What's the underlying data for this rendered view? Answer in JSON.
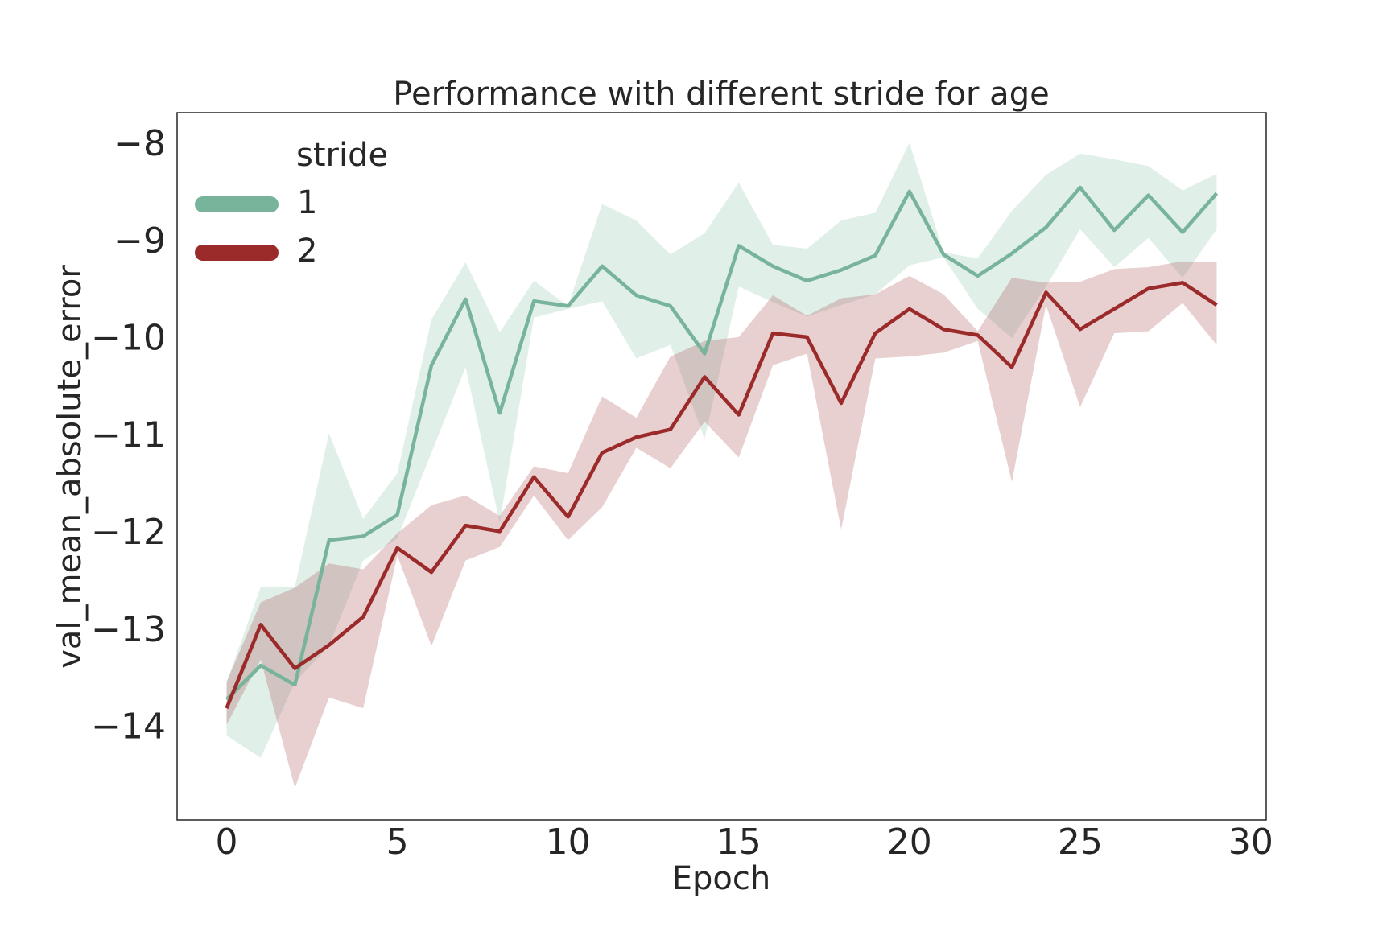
{
  "chart_data": {
    "type": "line",
    "title": "Performance with different stride for age",
    "xlabel": "Epoch",
    "ylabel": "val_mean_absolute_error",
    "legend_title": "stride",
    "legend": "upper left",
    "x": [
      0,
      1,
      2,
      3,
      4,
      5,
      6,
      7,
      8,
      9,
      10,
      11,
      12,
      13,
      14,
      15,
      16,
      17,
      18,
      19,
      20,
      21,
      22,
      23,
      24,
      25,
      26,
      27,
      28,
      29
    ],
    "xlim": [
      -1.45,
      30.45
    ],
    "xticks": [
      0,
      5,
      10,
      15,
      20,
      25,
      30
    ],
    "ylim": [
      -14.94,
      -7.66
    ],
    "yticks": [
      {
        "value": -14,
        "label": "−14"
      },
      {
        "value": -13,
        "label": "−13"
      },
      {
        "value": -12,
        "label": "−12"
      },
      {
        "value": -11,
        "label": "−11"
      },
      {
        "value": -10,
        "label": "−10"
      },
      {
        "value": -9,
        "label": "−9"
      },
      {
        "value": -8,
        "label": "−8"
      }
    ],
    "series": [
      {
        "name": "1",
        "color": "#78b49c",
        "values": [
          -13.7,
          -13.35,
          -13.55,
          -12.06,
          -12.02,
          -11.8,
          -10.26,
          -9.58,
          -10.75,
          -9.6,
          -9.65,
          -9.24,
          -9.54,
          -9.65,
          -10.14,
          -9.03,
          -9.24,
          -9.39,
          -9.28,
          -9.13,
          -8.47,
          -9.12,
          -9.34,
          -9.11,
          -8.84,
          -8.43,
          -8.87,
          -8.51,
          -8.89,
          -8.49
        ],
        "upper": [
          -13.52,
          -12.54,
          -12.54,
          -10.96,
          -11.84,
          -11.37,
          -9.79,
          -9.2,
          -9.92,
          -9.39,
          -9.65,
          -8.6,
          -8.77,
          -9.12,
          -8.9,
          -8.38,
          -9.02,
          -9.06,
          -8.77,
          -8.69,
          -7.97,
          -9.1,
          -9.16,
          -8.67,
          -8.3,
          -8.08,
          -8.14,
          -8.21,
          -8.46,
          -8.29
        ],
        "lower": [
          -14.07,
          -14.3,
          -13.52,
          -13.15,
          -12.27,
          -12.04,
          -11.16,
          -10.28,
          -11.88,
          -9.77,
          -9.68,
          -9.6,
          -10.19,
          -10.05,
          -11.02,
          -9.45,
          -9.61,
          -9.76,
          -9.64,
          -9.53,
          -9.23,
          -9.15,
          -9.68,
          -9.98,
          -9.45,
          -8.86,
          -9.25,
          -8.95,
          -9.36,
          -8.86
        ]
      },
      {
        "name": "2",
        "color": "#9b2a2a",
        "values": [
          -13.79,
          -12.93,
          -13.38,
          -13.14,
          -12.85,
          -12.14,
          -12.39,
          -11.91,
          -11.97,
          -11.41,
          -11.82,
          -11.16,
          -11.0,
          -10.92,
          -10.38,
          -10.77,
          -9.93,
          -9.97,
          -10.65,
          -9.93,
          -9.68,
          -9.89,
          -9.95,
          -10.28,
          -9.51,
          -9.89,
          -9.68,
          -9.47,
          -9.41,
          -9.64
        ],
        "upper": [
          -13.52,
          -12.7,
          -12.55,
          -12.3,
          -12.36,
          -11.99,
          -11.7,
          -11.6,
          -11.81,
          -11.3,
          -11.37,
          -10.58,
          -10.8,
          -10.17,
          -10.01,
          -9.97,
          -9.54,
          -9.75,
          -9.57,
          -9.53,
          -9.34,
          -9.53,
          -9.91,
          -9.36,
          -9.41,
          -9.4,
          -9.27,
          -9.25,
          -9.19,
          -9.2
        ],
        "lower": [
          -13.96,
          -13.29,
          -14.61,
          -13.68,
          -13.79,
          -12.22,
          -13.15,
          -12.27,
          -12.13,
          -11.6,
          -12.06,
          -11.72,
          -11.11,
          -11.32,
          -10.84,
          -11.21,
          -10.26,
          -10.14,
          -11.95,
          -10.19,
          -10.17,
          -10.13,
          -10.01,
          -11.46,
          -9.64,
          -10.69,
          -9.93,
          -9.91,
          -9.62,
          -10.05
        ]
      }
    ]
  }
}
